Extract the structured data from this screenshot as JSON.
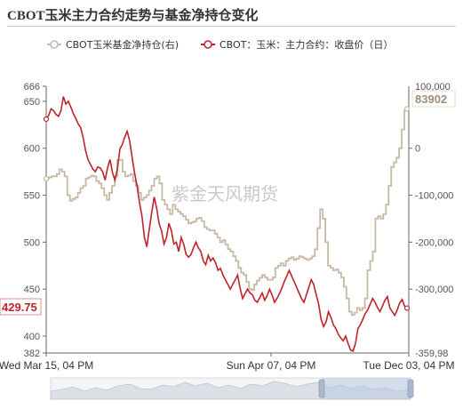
{
  "title": "CBOT玉米主力合约走势与基金净持仓变化",
  "watermark": "紫金天风期货",
  "chart_data": {
    "type": "line",
    "x_ticks": [
      "Wed Mar 15, 04 PM",
      "Sun Apr 07, 04 PM",
      "Tue Dec 03, 04 PM"
    ],
    "y_left": {
      "ticks": [
        400,
        450,
        500,
        550,
        600,
        650
      ],
      "min": 382,
      "max": 666
    },
    "y_right": {
      "ticks": [
        0,
        "-100,000",
        "-200,000",
        "-300,000",
        "-359,98"
      ],
      "top_label": "100,000"
    },
    "end_labels": {
      "price": "429.75",
      "position": "83902"
    },
    "series": [
      {
        "name": "CBOT玉米基金净持仓(右)",
        "axis": "right",
        "color": "#c8b9a6",
        "values": [
          -65000,
          -62000,
          -60000,
          -60000,
          -55000,
          -45000,
          -50000,
          -60000,
          -100000,
          -112000,
          -108000,
          -105000,
          -95000,
          -85000,
          -80000,
          -65000,
          -62000,
          -58000,
          -60000,
          -70000,
          -75000,
          -85000,
          -100000,
          -110000,
          -95000,
          -80000,
          -60000,
          -25000,
          -25000,
          -50000,
          -60000,
          -58000,
          -55000,
          -70000,
          -80000,
          -95000,
          -110000,
          -105000,
          -100000,
          -90000,
          -80000,
          -65000,
          -60000,
          -75000,
          -110000,
          -120000,
          -130000,
          -140000,
          -120000,
          -130000,
          -135000,
          -140000,
          -145000,
          -152000,
          -160000,
          -158000,
          -156000,
          -150000,
          -148000,
          -155000,
          -168000,
          -172000,
          -175000,
          -175000,
          -182000,
          -190000,
          -200000,
          -196000,
          -205000,
          -215000,
          -220000,
          -230000,
          -240000,
          -255000,
          -265000,
          -270000,
          -285000,
          -300000,
          -302000,
          -290000,
          -282000,
          -276000,
          -270000,
          -275000,
          -280000,
          -280000,
          -275000,
          -255000,
          -250000,
          -245000,
          -250000,
          -240000,
          -235000,
          -232000,
          -238000,
          -235000,
          -230000,
          -232000,
          -235000,
          -238000,
          -235000,
          -230000,
          -215000,
          -170000,
          -130000,
          -150000,
          -200000,
          -250000,
          -255000,
          -260000,
          -258000,
          -265000,
          -275000,
          -295000,
          -320000,
          -348000,
          -355000,
          -350000,
          -340000,
          -345000,
          -340000,
          -320000,
          -260000,
          -240000,
          -220000,
          -150000,
          -145000,
          -150000,
          -140000,
          -120000,
          -80000,
          -40000,
          -30000,
          -20000,
          0,
          40000,
          80000,
          83902
        ],
        "end_value": 83902
      },
      {
        "name": "CBOT：玉米：主力合约：收盘价（日）",
        "axis": "left",
        "color": "#c0232a",
        "values": [
          631,
          635,
          642,
          640,
          636,
          634,
          640,
          655,
          647,
          650,
          644,
          637,
          632,
          626,
          622,
          612,
          598,
          588,
          583,
          578,
          575,
          580,
          579,
          575,
          566,
          579,
          588,
          574,
          566,
          578,
          599,
          604,
          612,
          618,
          608,
          590,
          574,
          560,
          542,
          528,
          505,
          495,
          514,
          532,
          548,
          536,
          520,
          512,
          498,
          505,
          520,
          512,
          498,
          500,
          490,
          505,
          498,
          487,
          484,
          487,
          494,
          500,
          494,
          490,
          480,
          476,
          486,
          480,
          483,
          478,
          470,
          472,
          465,
          460,
          455,
          450,
          455,
          460,
          465,
          451,
          440,
          445,
          450,
          446,
          444,
          438,
          436,
          441,
          446,
          438,
          443,
          450,
          444,
          436,
          440,
          445,
          451,
          458,
          464,
          470,
          464,
          458,
          452,
          446,
          440,
          436,
          444,
          452,
          460,
          455,
          444,
          434,
          418,
          410,
          415,
          426,
          420,
          412,
          408,
          402,
          398,
          395,
          400,
          392,
          385,
          384,
          392,
          408,
          412,
          418,
          424,
          428,
          434,
          440,
          436,
          430,
          426,
          432,
          438,
          442,
          430,
          426,
          422,
          428,
          435,
          439,
          432,
          429.75
        ],
        "end_value": 429.75
      }
    ]
  }
}
